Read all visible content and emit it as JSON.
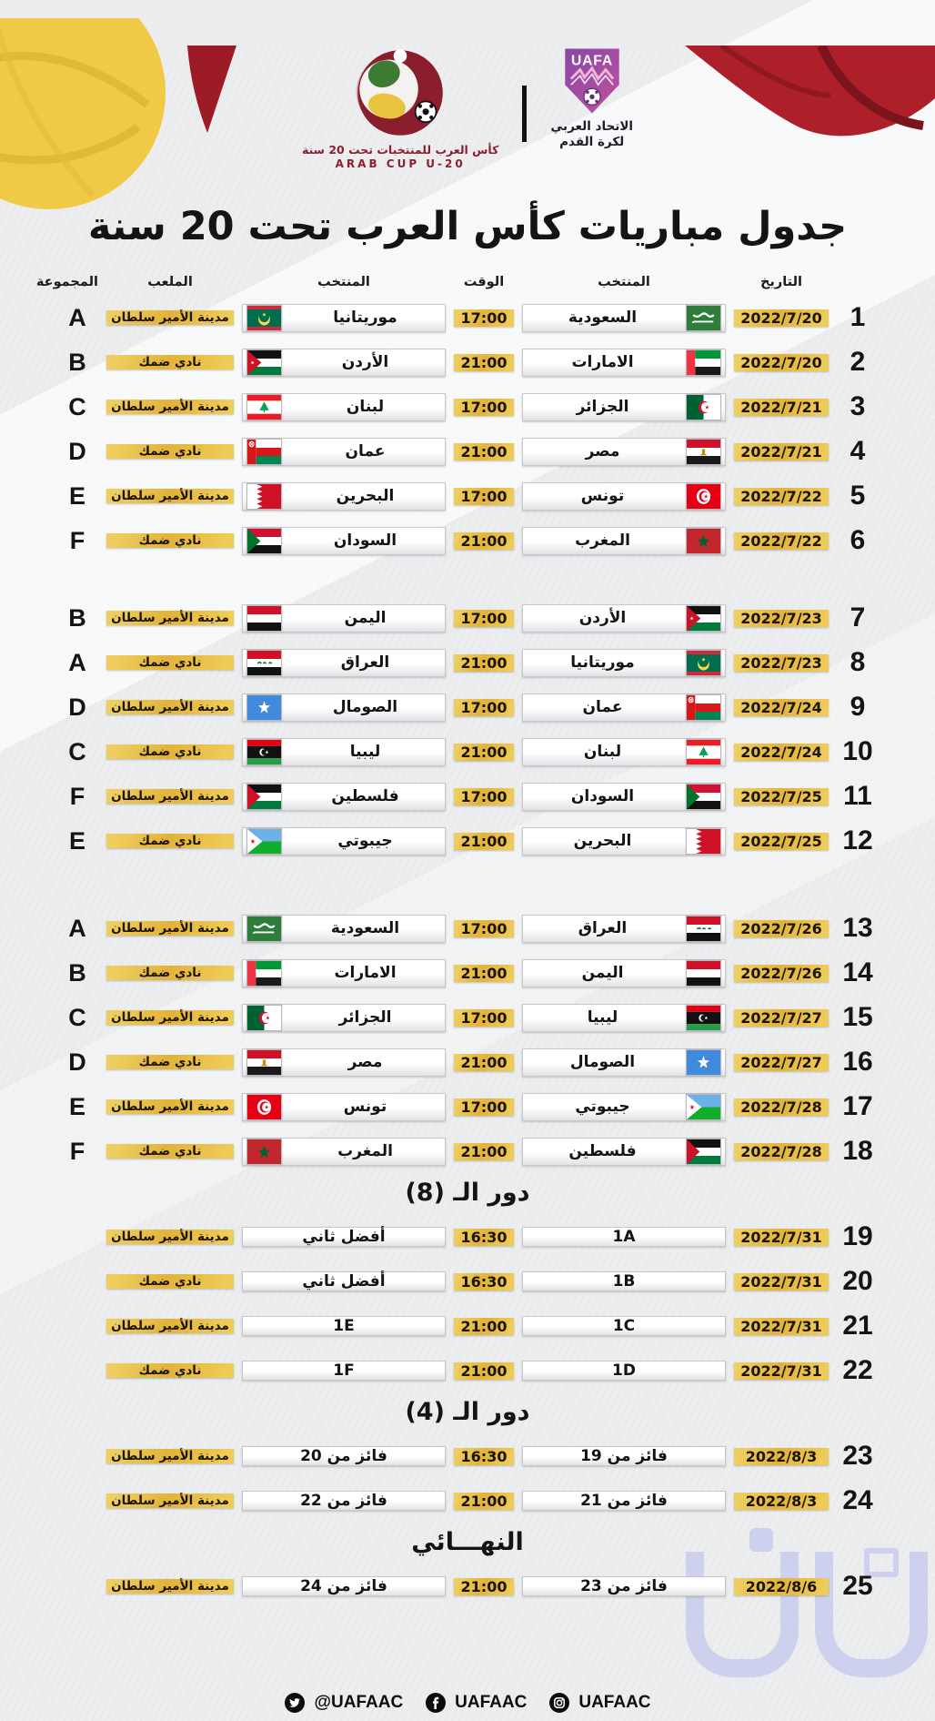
{
  "header": {
    "tournament_logo": {
      "caption_ar": "كأس العرب للمنتخبات تحت 20 سنة",
      "caption_en": "ARAB CUP U-20"
    },
    "federation_logo": {
      "acronym": "UAFA",
      "caption_line1": "الاتحاد العربي",
      "caption_line2": "لكرة القدم"
    }
  },
  "title": "جدول مباريات كأس العرب تحت 20 سنة",
  "columns": {
    "date": "التاريخ",
    "team_right": "المنتخب",
    "time": "الوقت",
    "team_left": "المنتخب",
    "stadium": "الملعب",
    "group": "المجموعة"
  },
  "stadiums": {
    "prince_sultan": "مدينة الأمير سلطان",
    "damac": "نادي ضمك"
  },
  "sections": [
    {
      "title": "",
      "matches": [
        {
          "no": "1",
          "date": "2022/7/20",
          "team_right": "السعودية",
          "flag_right": "flag-saudi-arabia",
          "time": "17:00",
          "team_left": "موريتانيا",
          "flag_left": "flag-mauritania",
          "stadium": "مدينة الأمير سلطان",
          "group": "A"
        },
        {
          "no": "2",
          "date": "2022/7/20",
          "team_right": "الامارات",
          "flag_right": "flag-uae",
          "time": "21:00",
          "team_left": "الأردن",
          "flag_left": "flag-jordan",
          "stadium": "نادي ضمك",
          "group": "B"
        },
        {
          "no": "3",
          "date": "2022/7/21",
          "team_right": "الجزائر",
          "flag_right": "flag-algeria",
          "time": "17:00",
          "team_left": "لبنان",
          "flag_left": "flag-lebanon",
          "stadium": "مدينة الأمير سلطان",
          "group": "C"
        },
        {
          "no": "4",
          "date": "2022/7/21",
          "team_right": "مصر",
          "flag_right": "flag-egypt",
          "time": "21:00",
          "team_left": "عمان",
          "flag_left": "flag-oman",
          "stadium": "نادي ضمك",
          "group": "D"
        },
        {
          "no": "5",
          "date": "2022/7/22",
          "team_right": "تونس",
          "flag_right": "flag-tunisia",
          "time": "17:00",
          "team_left": "البحرين",
          "flag_left": "flag-bahrain",
          "stadium": "مدينة الأمير سلطان",
          "group": "E"
        },
        {
          "no": "6",
          "date": "2022/7/22",
          "team_right": "المغرب",
          "flag_right": "flag-morocco",
          "time": "21:00",
          "team_left": "السودان",
          "flag_left": "flag-sudan",
          "stadium": "نادي ضمك",
          "group": "F"
        }
      ]
    },
    {
      "title": "",
      "matches": [
        {
          "no": "7",
          "date": "2022/7/23",
          "team_right": "الأردن",
          "flag_right": "flag-jordan",
          "time": "17:00",
          "team_left": "اليمن",
          "flag_left": "flag-yemen",
          "stadium": "مدينة الأمير سلطان",
          "group": "B"
        },
        {
          "no": "8",
          "date": "2022/7/23",
          "team_right": "موريتانيا",
          "flag_right": "flag-mauritania",
          "time": "21:00",
          "team_left": "العراق",
          "flag_left": "flag-iraq",
          "stadium": "نادي ضمك",
          "group": "A"
        },
        {
          "no": "9",
          "date": "2022/7/24",
          "team_right": "عمان",
          "flag_right": "flag-oman",
          "time": "17:00",
          "team_left": "الصومال",
          "flag_left": "flag-somalia",
          "stadium": "مدينة الأمير سلطان",
          "group": "D"
        },
        {
          "no": "10",
          "date": "2022/7/24",
          "team_right": "لبنان",
          "flag_right": "flag-lebanon",
          "time": "21:00",
          "team_left": "ليبيا",
          "flag_left": "flag-libya",
          "stadium": "نادي ضمك",
          "group": "C"
        },
        {
          "no": "11",
          "date": "2022/7/25",
          "team_right": "السودان",
          "flag_right": "flag-sudan",
          "time": "17:00",
          "team_left": "فلسطين",
          "flag_left": "flag-palestine",
          "stadium": "مدينة الأمير سلطان",
          "group": "F"
        },
        {
          "no": "12",
          "date": "2022/7/25",
          "team_right": "البحرين",
          "flag_right": "flag-bahrain",
          "time": "21:00",
          "team_left": "جيبوتي",
          "flag_left": "flag-djibouti",
          "stadium": "نادي ضمك",
          "group": "E"
        }
      ]
    },
    {
      "title": "",
      "matches": [
        {
          "no": "13",
          "date": "2022/7/26",
          "team_right": "العراق",
          "flag_right": "flag-iraq",
          "time": "17:00",
          "team_left": "السعودية",
          "flag_left": "flag-saudi-arabia",
          "stadium": "مدينة الأمير سلطان",
          "group": "A"
        },
        {
          "no": "14",
          "date": "2022/7/26",
          "team_right": "اليمن",
          "flag_right": "flag-yemen",
          "time": "21:00",
          "team_left": "الامارات",
          "flag_left": "flag-uae",
          "stadium": "نادي ضمك",
          "group": "B"
        },
        {
          "no": "15",
          "date": "2022/7/27",
          "team_right": "ليبيا",
          "flag_right": "flag-libya",
          "time": "17:00",
          "team_left": "الجزائر",
          "flag_left": "flag-algeria",
          "stadium": "مدينة الأمير سلطان",
          "group": "C"
        },
        {
          "no": "16",
          "date": "2022/7/27",
          "team_right": "الصومال",
          "flag_right": "flag-somalia",
          "time": "21:00",
          "team_left": "مصر",
          "flag_left": "flag-egypt",
          "stadium": "نادي ضمك",
          "group": "D"
        },
        {
          "no": "17",
          "date": "2022/7/28",
          "team_right": "جيبوتي",
          "flag_right": "flag-djibouti",
          "time": "17:00",
          "team_left": "تونس",
          "flag_left": "flag-tunisia",
          "stadium": "مدينة الأمير سلطان",
          "group": "E"
        },
        {
          "no": "18",
          "date": "2022/7/28",
          "team_right": "فلسطين",
          "flag_right": "flag-palestine",
          "time": "21:00",
          "team_left": "المغرب",
          "flag_left": "flag-morocco",
          "stadium": "نادي ضمك",
          "group": "F"
        }
      ]
    },
    {
      "title": "دور الـ (8)",
      "matches": [
        {
          "no": "19",
          "date": "2022/7/31",
          "team_right": "1A",
          "flag_right": null,
          "time": "16:30",
          "team_left": "أفضل ثاني",
          "flag_left": null,
          "stadium": "مدينة الأمير سلطان",
          "group": ""
        },
        {
          "no": "20",
          "date": "2022/7/31",
          "team_right": "1B",
          "flag_right": null,
          "time": "16:30",
          "team_left": "أفضل ثاني",
          "flag_left": null,
          "stadium": "نادي ضمك",
          "group": ""
        },
        {
          "no": "21",
          "date": "2022/7/31",
          "team_right": "1C",
          "flag_right": null,
          "time": "21:00",
          "team_left": "1E",
          "flag_left": null,
          "stadium": "مدينة الأمير سلطان",
          "group": ""
        },
        {
          "no": "22",
          "date": "2022/7/31",
          "team_right": "1D",
          "flag_right": null,
          "time": "21:00",
          "team_left": "1F",
          "flag_left": null,
          "stadium": "نادي ضمك",
          "group": ""
        }
      ]
    },
    {
      "title": "دور الـ (4)",
      "matches": [
        {
          "no": "23",
          "date": "2022/8/3",
          "team_right": "فائز من 19",
          "flag_right": null,
          "time": "16:30",
          "team_left": "فائز من 20",
          "flag_left": null,
          "stadium": "مدينة الأمير سلطان",
          "group": ""
        },
        {
          "no": "24",
          "date": "2022/8/3",
          "team_right": "فائز من 21",
          "flag_right": null,
          "time": "21:00",
          "team_left": "فائز من 22",
          "flag_left": null,
          "stadium": "مدينة الأمير سلطان",
          "group": ""
        }
      ]
    },
    {
      "title": "النهـــائي",
      "matches": [
        {
          "no": "25",
          "date": "2022/8/6",
          "team_right": "فائز من 23",
          "flag_right": null,
          "time": "21:00",
          "team_left": "فائز من 24",
          "flag_left": null,
          "stadium": "مدينة الأمير سلطان",
          "group": ""
        }
      ]
    }
  ],
  "footer": {
    "twitter_handle": "@UAFAAC",
    "facebook_handle": "UAFAAC",
    "instagram_handle": "UAFAAC"
  },
  "colors": {
    "gold": "#e6ba42",
    "maroon": "#8e1f2f",
    "uafa_purple": "#7d3f98",
    "watermark_lavender": "#c7cbee"
  }
}
